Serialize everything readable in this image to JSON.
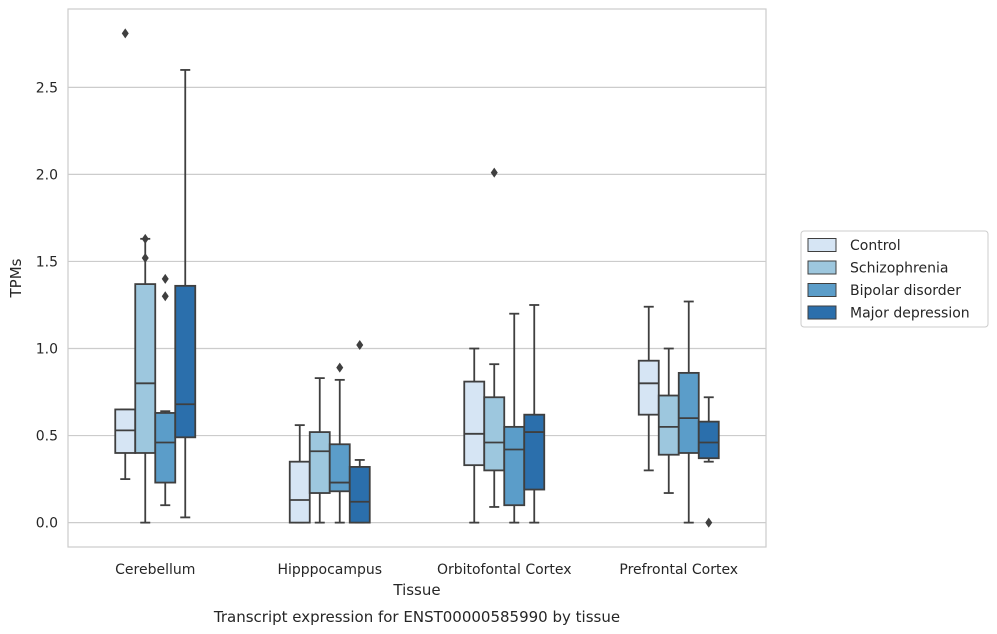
{
  "chart_data": {
    "type": "box",
    "caption": "Transcript expression for ENST00000585990 by tissue",
    "xlabel": "Tissue",
    "ylabel": "TPMs",
    "ylim": [
      -0.14,
      2.95
    ],
    "yticks": [
      0.0,
      0.5,
      1.0,
      1.5,
      2.0,
      2.5
    ],
    "ytick_labels": [
      "0.0",
      "0.5",
      "1.0",
      "1.5",
      "2.0",
      "2.5"
    ],
    "grid": true,
    "legend_position": "right",
    "categories": [
      "Cerebellum",
      "Hipppocampus",
      "Orbitofontal Cortex",
      "Prefrontal Cortex"
    ],
    "series": [
      {
        "name": "Control",
        "color": "#d6e5f4",
        "boxes": [
          {
            "whislo": 0.25,
            "q1": 0.4,
            "med": 0.53,
            "q3": 0.65,
            "whishi": 0.65,
            "fliers": [
              2.81
            ]
          },
          {
            "whislo": 0.0,
            "q1": 0.0,
            "med": 0.13,
            "q3": 0.35,
            "whishi": 0.56,
            "fliers": []
          },
          {
            "whislo": 0.0,
            "q1": 0.33,
            "med": 0.51,
            "q3": 0.81,
            "whishi": 1.0,
            "fliers": []
          },
          {
            "whislo": 0.3,
            "q1": 0.62,
            "med": 0.8,
            "q3": 0.93,
            "whishi": 1.24,
            "fliers": []
          }
        ]
      },
      {
        "name": "Schizophrenia",
        "color": "#9dc7de",
        "boxes": [
          {
            "whislo": 0.0,
            "q1": 0.4,
            "med": 0.8,
            "q3": 1.37,
            "whishi": 1.63,
            "fliers": [
              1.52,
              1.63
            ]
          },
          {
            "whislo": 0.0,
            "q1": 0.17,
            "med": 0.41,
            "q3": 0.52,
            "whishi": 0.83,
            "fliers": []
          },
          {
            "whislo": 0.09,
            "q1": 0.3,
            "med": 0.46,
            "q3": 0.72,
            "whishi": 0.91,
            "fliers": [
              2.01
            ]
          },
          {
            "whislo": 0.17,
            "q1": 0.39,
            "med": 0.55,
            "q3": 0.73,
            "whishi": 1.0,
            "fliers": []
          }
        ]
      },
      {
        "name": "Bipolar disorder",
        "color": "#5b9dc9",
        "boxes": [
          {
            "whislo": 0.1,
            "q1": 0.23,
            "med": 0.46,
            "q3": 0.63,
            "whishi": 0.64,
            "fliers": [
              1.3,
              1.4
            ]
          },
          {
            "whislo": 0.0,
            "q1": 0.18,
            "med": 0.23,
            "q3": 0.45,
            "whishi": 0.82,
            "fliers": [
              0.89
            ]
          },
          {
            "whislo": 0.0,
            "q1": 0.1,
            "med": 0.42,
            "q3": 0.55,
            "whishi": 1.2,
            "fliers": []
          },
          {
            "whislo": 0.0,
            "q1": 0.4,
            "med": 0.6,
            "q3": 0.86,
            "whishi": 1.27,
            "fliers": []
          }
        ]
      },
      {
        "name": "Major depression",
        "color": "#2b6fac",
        "boxes": [
          {
            "whislo": 0.03,
            "q1": 0.49,
            "med": 0.68,
            "q3": 1.36,
            "whishi": 2.6,
            "fliers": []
          },
          {
            "whislo": 0.0,
            "q1": 0.0,
            "med": 0.12,
            "q3": 0.32,
            "whishi": 0.36,
            "fliers": [
              1.02
            ]
          },
          {
            "whislo": 0.0,
            "q1": 0.19,
            "med": 0.52,
            "q3": 0.62,
            "whishi": 1.25,
            "fliers": []
          },
          {
            "whislo": 0.35,
            "q1": 0.37,
            "med": 0.46,
            "q3": 0.58,
            "whishi": 0.72,
            "fliers": [
              0.0
            ]
          }
        ]
      }
    ]
  }
}
